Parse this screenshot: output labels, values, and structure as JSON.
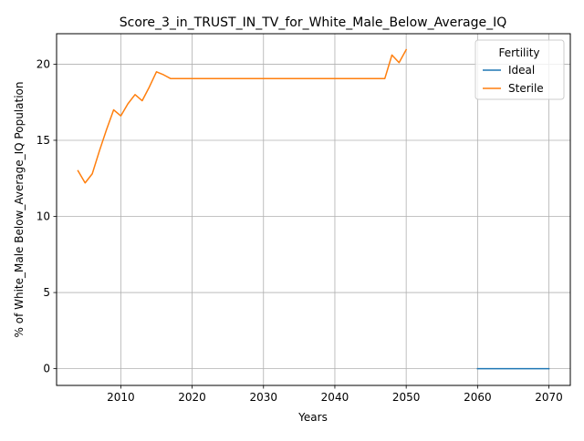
{
  "chart_data": {
    "type": "line",
    "title": "Score_3_in_TRUST_IN_TV_for_White_Male_Below_Average_IQ",
    "xlabel": "Years",
    "ylabel": "% of White_Male Below_Average_IQ Population",
    "xlim": [
      2001,
      2073
    ],
    "ylim": [
      -1.1,
      22.0
    ],
    "xticks": [
      2010,
      2020,
      2030,
      2040,
      2050,
      2060,
      2070
    ],
    "yticks": [
      0,
      5,
      10,
      15,
      20
    ],
    "grid": true,
    "legend": {
      "title": "Fertility",
      "placement": "top-right"
    },
    "series": [
      {
        "name": "Ideal",
        "color": "#1f77b4",
        "x": [
          2060,
          2070
        ],
        "y": [
          0,
          0
        ]
      },
      {
        "name": "Sterile",
        "color": "#ff7f0e",
        "x": [
          2004,
          2005,
          2006,
          2007,
          2008,
          2009,
          2010,
          2011,
          2012,
          2013,
          2014,
          2015,
          2016,
          2017,
          2018,
          2020,
          2025,
          2030,
          2035,
          2040,
          2045,
          2047,
          2048,
          2049,
          2050
        ],
        "y": [
          13.0,
          12.2,
          12.8,
          14.3,
          15.7,
          17.0,
          16.6,
          17.4,
          18.0,
          17.6,
          18.5,
          19.5,
          19.3,
          19.05,
          19.05,
          19.05,
          19.05,
          19.05,
          19.05,
          19.05,
          19.05,
          19.05,
          20.6,
          20.1,
          20.95
        ]
      }
    ]
  }
}
